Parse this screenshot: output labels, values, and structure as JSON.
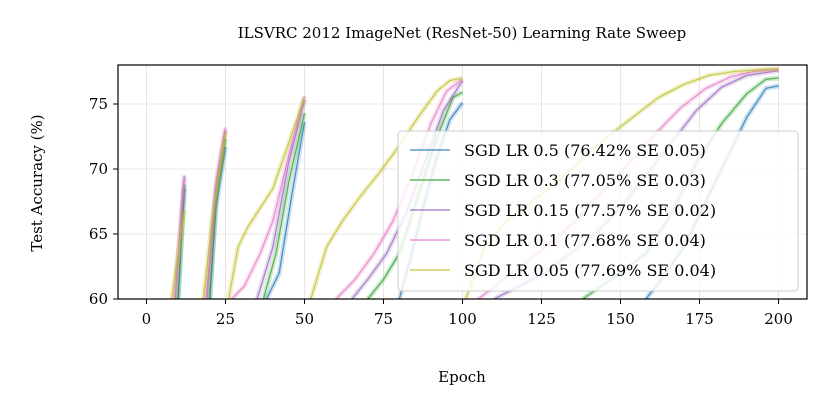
{
  "chart_data": {
    "type": "line",
    "title": "ILSVRC 2012 ImageNet (ResNet-50) Learning Rate Sweep",
    "xlabel": "Epoch",
    "ylabel": "Test Accuracy (%)",
    "xlim": [
      -9,
      209
    ],
    "ylim": [
      60,
      78
    ],
    "xticks": [
      0,
      25,
      50,
      75,
      100,
      125,
      150,
      175,
      200
    ],
    "yticks": [
      60,
      65,
      70,
      75
    ],
    "grid": true,
    "legend_position": "right",
    "series": [
      {
        "name": "SGD LR 0.5 (76.42% SE 0.05)",
        "color": "#1f77b4",
        "segments": [
          [
            [
              10,
              60
            ],
            [
              12,
              68.5
            ]
          ],
          [
            [
              20,
              60
            ],
            [
              22,
              67
            ],
            [
              25,
              71.7
            ]
          ],
          [
            [
              38,
              60
            ],
            [
              42,
              62
            ],
            [
              46,
              68
            ],
            [
              50,
              73.6
            ]
          ],
          [
            [
              80,
              60
            ],
            [
              84,
              63.5
            ],
            [
              88,
              67.5
            ],
            [
              92,
              71
            ],
            [
              96,
              73.8
            ],
            [
              100,
              75.1
            ]
          ],
          [
            [
              158,
              60
            ],
            [
              163,
              61.5
            ],
            [
              170,
              64
            ],
            [
              177,
              67.5
            ],
            [
              184,
              71
            ],
            [
              190,
              74
            ],
            [
              196,
              76.2
            ],
            [
              200,
              76.4
            ]
          ]
        ]
      },
      {
        "name": "SGD LR 0.3 (77.05% SE 0.03)",
        "color": "#2ca02c",
        "segments": [
          [
            [
              10,
              60
            ],
            [
              12,
              68.8
            ]
          ],
          [
            [
              20,
              60
            ],
            [
              22,
              67.8
            ],
            [
              25,
              72.3
            ]
          ],
          [
            [
              37,
              60
            ],
            [
              41,
              63.5
            ],
            [
              45,
              69
            ],
            [
              50,
              74.3
            ]
          ],
          [
            [
              70,
              60
            ],
            [
              75,
              61.5
            ],
            [
              80,
              63.5
            ],
            [
              86,
              68
            ],
            [
              92,
              72.5
            ],
            [
              97,
              75.5
            ],
            [
              100,
              75.9
            ]
          ],
          [
            [
              138,
              60
            ],
            [
              144,
              61
            ],
            [
              150,
              62
            ],
            [
              158,
              63.5
            ],
            [
              166,
              66.5
            ],
            [
              174,
              70.5
            ],
            [
              182,
              73.5
            ],
            [
              190,
              75.8
            ],
            [
              196,
              76.9
            ],
            [
              200,
              77
            ]
          ]
        ]
      },
      {
        "name": "SGD LR 0.15 (77.57% SE 0.02)",
        "color": "#9467bd",
        "segments": [
          [
            [
              9,
              60
            ],
            [
              12,
              69.5
            ]
          ],
          [
            [
              19,
              60
            ],
            [
              22,
              68.5
            ],
            [
              25,
              73
            ]
          ],
          [
            [
              35,
              60
            ],
            [
              40,
              64
            ],
            [
              45,
              70.5
            ],
            [
              50,
              75.3
            ]
          ],
          [
            [
              65,
              60
            ],
            [
              70,
              61.5
            ],
            [
              76,
              63.5
            ],
            [
              82,
              66.5
            ],
            [
              88,
              70.5
            ],
            [
              94,
              74.5
            ],
            [
              100,
              76.8
            ]
          ],
          [
            [
              110,
              60
            ],
            [
              118,
              61
            ],
            [
              126,
              62
            ],
            [
              134,
              63.5
            ],
            [
              142,
              65
            ],
            [
              150,
              67
            ],
            [
              158,
              69.5
            ],
            [
              166,
              72
            ],
            [
              174,
              74.5
            ],
            [
              182,
              76.3
            ],
            [
              190,
              77.2
            ],
            [
              200,
              77.57
            ]
          ]
        ]
      },
      {
        "name": "SGD LR 0.1 (77.68% SE 0.04)",
        "color": "#e377c2",
        "segments": [
          [
            [
              9,
              60
            ],
            [
              12,
              69.3
            ]
          ],
          [
            [
              19,
              60
            ],
            [
              22,
              69
            ],
            [
              25,
              73.2
            ]
          ],
          [
            [
              27,
              60
            ],
            [
              31,
              61
            ],
            [
              36,
              63.5
            ],
            [
              40,
              66
            ],
            [
              45,
              71
            ],
            [
              50,
              75.6
            ]
          ],
          [
            [
              60,
              60
            ],
            [
              66,
              61.5
            ],
            [
              72,
              63.5
            ],
            [
              78,
              66
            ],
            [
              84,
              69.5
            ],
            [
              90,
              73.5
            ],
            [
              95,
              76
            ],
            [
              100,
              76.9
            ]
          ],
          [
            [
              105,
              60
            ],
            [
              113,
              61.5
            ],
            [
              121,
              63
            ],
            [
              129,
              64.5
            ],
            [
              137,
              66.3
            ],
            [
              145,
              68.5
            ],
            [
              153,
              70.5
            ],
            [
              161,
              72.7
            ],
            [
              169,
              74.7
            ],
            [
              177,
              76.2
            ],
            [
              185,
              77.1
            ],
            [
              192,
              77.5
            ],
            [
              200,
              77.68
            ]
          ]
        ]
      },
      {
        "name": "SGD LR 0.05 (77.69% SE 0.04)",
        "color": "#bcbd22",
        "segments": [
          [
            [
              8,
              60
            ],
            [
              12,
              66.8
            ]
          ],
          [
            [
              18,
              60
            ],
            [
              21,
              66.5
            ],
            [
              25,
              72.8
            ]
          ],
          [
            [
              26,
              60
            ],
            [
              29,
              64
            ],
            [
              32,
              65.5
            ],
            [
              36,
              67
            ],
            [
              40,
              68.5
            ],
            [
              45,
              72
            ],
            [
              50,
              75.5
            ]
          ],
          [
            [
              52,
              60
            ],
            [
              57,
              64
            ],
            [
              62,
              66
            ],
            [
              68,
              68
            ],
            [
              74,
              69.8
            ],
            [
              80,
              71.8
            ],
            [
              86,
              74
            ],
            [
              92,
              76
            ],
            [
              96,
              76.8
            ],
            [
              100,
              77
            ]
          ],
          [
            [
              101,
              60
            ],
            [
              107,
              64
            ],
            [
              114,
              66
            ],
            [
              122,
              67.5
            ],
            [
              130,
              69
            ],
            [
              138,
              70.8
            ],
            [
              146,
              72.5
            ],
            [
              154,
              74
            ],
            [
              162,
              75.5
            ],
            [
              170,
              76.5
            ],
            [
              178,
              77.2
            ],
            [
              186,
              77.5
            ],
            [
              194,
              77.65
            ],
            [
              200,
              77.69
            ]
          ]
        ]
      }
    ]
  }
}
